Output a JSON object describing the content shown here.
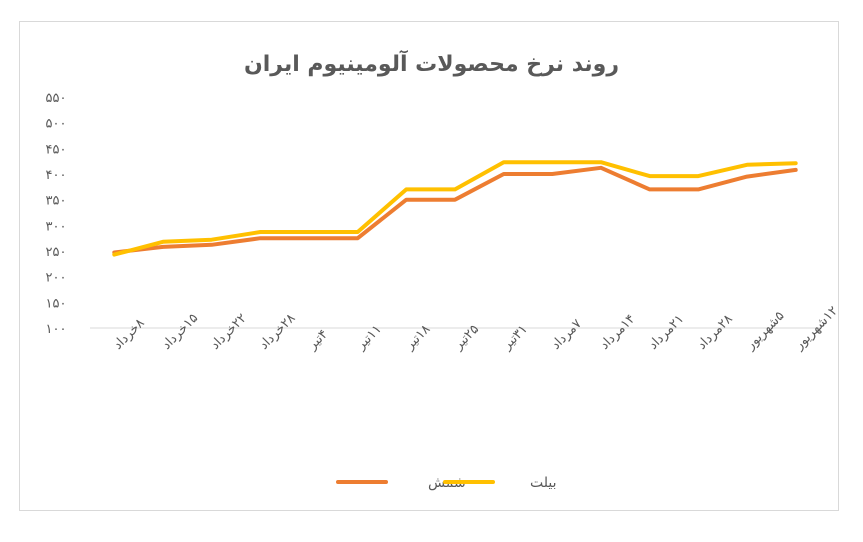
{
  "chart_data": {
    "type": "line",
    "title": "روند نرخ محصولات آلومینیوم ایران",
    "categories": [
      "۸خرداد",
      "۱۵خرداد",
      "۲۲خرداد",
      "۲۸خرداد",
      "۴تیر",
      "۱۱تیر",
      "۱۸تیر",
      "۲۵تیر",
      "۳۱تیر",
      "۷مرداد",
      "۱۴مرداد",
      "۲۱مرداد",
      "۲۸مرداد",
      "۵شهریور",
      "۱۲شهریور"
    ],
    "y_ticks": [
      "۱۰۰",
      "۱۵۰",
      "۲۰۰",
      "۲۵۰",
      "۳۰۰",
      "۳۵۰",
      "۴۰۰",
      "۴۵۰",
      "۵۰۰",
      "۵۵۰"
    ],
    "ylim": [
      100,
      550
    ],
    "grid": false,
    "legend_position": "bottom",
    "series": [
      {
        "name": "شمش",
        "color": "#ED7D31",
        "values": [
          247,
          258,
          262,
          275,
          275,
          275,
          350,
          350,
          400,
          400,
          412,
          370,
          370,
          395,
          408
        ]
      },
      {
        "name": "بیلت",
        "color": "#FFC000",
        "values": [
          243,
          268,
          272,
          287,
          287,
          287,
          370,
          370,
          423,
          423,
          423,
          396,
          396,
          418,
          421
        ]
      }
    ]
  }
}
